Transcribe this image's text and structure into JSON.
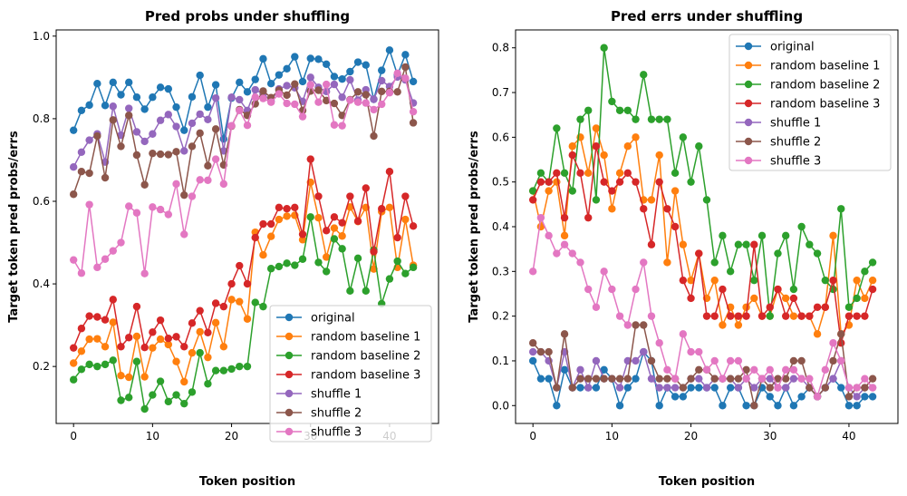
{
  "chart_data": [
    {
      "type": "line",
      "title": "Pred probs under shuffling",
      "xlabel": "Token position",
      "ylabel": "Target token pred probs/errs",
      "xlim": [
        -2.2,
        46.2
      ],
      "ylim": [
        0.062,
        1.015
      ],
      "xticks": [
        0,
        10,
        20,
        30,
        40
      ],
      "yticks": [
        0.2,
        0.4,
        0.6,
        0.8,
        1.0
      ],
      "ytick_labels": [
        "0.2",
        "0.4",
        "0.6",
        "0.8",
        "1.0"
      ],
      "legend_position": "lower right",
      "series": [
        {
          "name": "original",
          "color": "#1f77b4",
          "values": [
            0.772,
            0.82,
            0.833,
            0.885,
            0.832,
            0.888,
            0.858,
            0.888,
            0.852,
            0.823,
            0.852,
            0.876,
            0.872,
            0.828,
            0.772,
            0.853,
            0.905,
            0.828,
            0.882,
            0.751,
            0.85,
            0.888,
            0.865,
            0.895,
            0.945,
            0.885,
            0.906,
            0.921,
            0.95,
            0.89,
            0.946,
            0.944,
            0.932,
            0.902,
            0.896,
            0.914,
            0.937,
            0.93,
            0.847,
            0.917,
            0.966,
            0.906,
            0.955,
            0.89
          ]
        },
        {
          "name": "random baseline 1",
          "color": "#ff7f0e",
          "values": [
            0.208,
            0.237,
            0.266,
            0.267,
            0.248,
            0.307,
            0.178,
            0.174,
            0.273,
            0.175,
            0.245,
            0.266,
            0.253,
            0.212,
            0.163,
            0.233,
            0.284,
            0.222,
            0.306,
            0.248,
            0.362,
            0.357,
            0.315,
            0.525,
            0.47,
            0.515,
            0.556,
            0.564,
            0.566,
            0.507,
            0.646,
            0.56,
            0.465,
            0.535,
            0.516,
            0.586,
            0.551,
            0.585,
            0.436,
            0.575,
            0.585,
            0.44,
            0.556,
            0.445
          ]
        },
        {
          "name": "random baseline 2",
          "color": "#2ca02c",
          "values": [
            0.168,
            0.193,
            0.205,
            0.2,
            0.205,
            0.215,
            0.118,
            0.125,
            0.212,
            0.097,
            0.131,
            0.164,
            0.115,
            0.131,
            0.11,
            0.138,
            0.233,
            0.158,
            0.19,
            0.19,
            0.194,
            0.2,
            0.2,
            0.355,
            0.345,
            0.437,
            0.442,
            0.45,
            0.445,
            0.46,
            0.562,
            0.452,
            0.43,
            0.509,
            0.485,
            0.383,
            0.462,
            0.383,
            0.482,
            0.352,
            0.412,
            0.455,
            0.425,
            0.44
          ]
        },
        {
          "name": "random baseline 3",
          "color": "#d62728",
          "values": [
            0.245,
            0.292,
            0.322,
            0.32,
            0.313,
            0.362,
            0.248,
            0.27,
            0.345,
            0.246,
            0.283,
            0.312,
            0.268,
            0.272,
            0.248,
            0.305,
            0.335,
            0.282,
            0.353,
            0.345,
            0.4,
            0.444,
            0.4,
            0.512,
            0.545,
            0.545,
            0.585,
            0.582,
            0.585,
            0.52,
            0.702,
            0.612,
            0.529,
            0.562,
            0.548,
            0.612,
            0.552,
            0.632,
            0.478,
            0.582,
            0.672,
            0.512,
            0.612,
            0.54
          ]
        },
        {
          "name": "shuffle 1",
          "color": "#9467bd",
          "values": [
            0.683,
            0.719,
            0.748,
            0.763,
            0.695,
            0.83,
            0.76,
            0.825,
            0.768,
            0.745,
            0.763,
            0.796,
            0.81,
            0.781,
            0.722,
            0.789,
            0.811,
            0.798,
            0.85,
            0.722,
            0.852,
            0.846,
            0.82,
            0.87,
            0.86,
            0.843,
            0.872,
            0.88,
            0.875,
            0.842,
            0.9,
            0.876,
            0.866,
            0.883,
            0.852,
            0.894,
            0.845,
            0.87,
            0.847,
            0.892,
            0.878,
            0.901,
            0.894,
            0.838
          ]
        },
        {
          "name": "shuffle 2",
          "color": "#8c564b",
          "values": [
            0.617,
            0.672,
            0.668,
            0.758,
            0.657,
            0.797,
            0.733,
            0.808,
            0.712,
            0.64,
            0.716,
            0.714,
            0.713,
            0.72,
            0.615,
            0.733,
            0.765,
            0.686,
            0.775,
            0.688,
            0.782,
            0.822,
            0.808,
            0.836,
            0.867,
            0.851,
            0.869,
            0.857,
            0.884,
            0.82,
            0.867,
            0.869,
            0.844,
            0.837,
            0.808,
            0.846,
            0.865,
            0.858,
            0.758,
            0.866,
            0.866,
            0.865,
            0.925,
            0.79
          ]
        },
        {
          "name": "shuffle 3",
          "color": "#e377c2",
          "values": [
            0.458,
            0.426,
            0.592,
            0.44,
            0.46,
            0.48,
            0.5,
            0.588,
            0.572,
            0.425,
            0.586,
            0.58,
            0.568,
            0.642,
            0.52,
            0.612,
            0.652,
            0.651,
            0.702,
            0.642,
            0.783,
            0.82,
            0.784,
            0.852,
            0.849,
            0.84,
            0.86,
            0.837,
            0.835,
            0.805,
            0.882,
            0.84,
            0.883,
            0.785,
            0.783,
            0.845,
            0.84,
            0.838,
            0.822,
            0.835,
            0.863,
            0.91,
            0.898,
            0.817
          ]
        }
      ]
    },
    {
      "type": "line",
      "title": "Pred errs under shuffling",
      "xlabel": "Token position",
      "ylabel": "Target token pred probs/errs",
      "xlim": [
        -2.2,
        46.2
      ],
      "ylim": [
        -0.04,
        0.84
      ],
      "xticks": [
        0,
        10,
        20,
        30,
        40
      ],
      "yticks": [
        0.0,
        0.1,
        0.2,
        0.3,
        0.4,
        0.5,
        0.6,
        0.7,
        0.8
      ],
      "ytick_labels": [
        "0.0",
        "0.1",
        "0.2",
        "0.3",
        "0.4",
        "0.5",
        "0.6",
        "0.7",
        "0.8"
      ],
      "legend_position": "upper right",
      "series": [
        {
          "name": "original",
          "color": "#1f77b4",
          "values": [
            0.1,
            0.06,
            0.06,
            0.0,
            0.08,
            0.04,
            0.04,
            0.04,
            0.04,
            0.08,
            0.06,
            0.0,
            0.04,
            0.06,
            0.12,
            0.1,
            0.0,
            0.04,
            0.02,
            0.02,
            0.04,
            0.04,
            0.04,
            0.04,
            0.0,
            0.04,
            0.04,
            0.0,
            0.0,
            0.04,
            0.02,
            0.0,
            0.04,
            0.0,
            0.02,
            0.04,
            0.02,
            0.04,
            0.06,
            0.04,
            0.0,
            0.0,
            0.02,
            0.02
          ]
        },
        {
          "name": "random baseline 1",
          "color": "#ff7f0e",
          "values": [
            0.48,
            0.4,
            0.48,
            0.5,
            0.38,
            0.58,
            0.6,
            0.52,
            0.62,
            0.56,
            0.44,
            0.52,
            0.58,
            0.6,
            0.46,
            0.46,
            0.56,
            0.32,
            0.48,
            0.36,
            0.28,
            0.34,
            0.24,
            0.28,
            0.18,
            0.22,
            0.18,
            0.22,
            0.24,
            0.2,
            0.2,
            0.26,
            0.24,
            0.2,
            0.2,
            0.2,
            0.16,
            0.22,
            0.38,
            0.16,
            0.18,
            0.28,
            0.24,
            0.28
          ]
        },
        {
          "name": "random baseline 2",
          "color": "#2ca02c",
          "values": [
            0.48,
            0.52,
            0.5,
            0.62,
            0.52,
            0.48,
            0.64,
            0.66,
            0.46,
            0.8,
            0.68,
            0.66,
            0.66,
            0.64,
            0.74,
            0.64,
            0.64,
            0.64,
            0.52,
            0.6,
            0.5,
            0.58,
            0.46,
            0.32,
            0.38,
            0.3,
            0.36,
            0.36,
            0.28,
            0.38,
            0.2,
            0.34,
            0.38,
            0.26,
            0.4,
            0.36,
            0.34,
            0.28,
            0.26,
            0.44,
            0.22,
            0.24,
            0.3,
            0.32
          ]
        },
        {
          "name": "random baseline 3",
          "color": "#d62728",
          "values": [
            0.46,
            0.5,
            0.5,
            0.52,
            0.42,
            0.56,
            0.52,
            0.42,
            0.58,
            0.5,
            0.48,
            0.5,
            0.52,
            0.5,
            0.44,
            0.36,
            0.5,
            0.44,
            0.4,
            0.28,
            0.24,
            0.34,
            0.2,
            0.2,
            0.26,
            0.2,
            0.2,
            0.2,
            0.36,
            0.2,
            0.22,
            0.26,
            0.2,
            0.24,
            0.2,
            0.2,
            0.22,
            0.22,
            0.28,
            0.14,
            0.2,
            0.2,
            0.2,
            0.26
          ]
        },
        {
          "name": "shuffle 1",
          "color": "#9467bd",
          "values": [
            0.12,
            0.12,
            0.1,
            0.04,
            0.12,
            0.04,
            0.08,
            0.04,
            0.1,
            0.06,
            0.06,
            0.04,
            0.1,
            0.1,
            0.12,
            0.06,
            0.04,
            0.04,
            0.04,
            0.04,
            0.06,
            0.06,
            0.04,
            0.06,
            0.06,
            0.06,
            0.04,
            0.06,
            0.04,
            0.06,
            0.06,
            0.04,
            0.04,
            0.06,
            0.06,
            0.04,
            0.02,
            0.04,
            0.06,
            0.1,
            0.04,
            0.02,
            0.04,
            0.04
          ]
        },
        {
          "name": "shuffle 2",
          "color": "#8c564b",
          "values": [
            0.14,
            0.12,
            0.12,
            0.04,
            0.16,
            0.04,
            0.06,
            0.06,
            0.06,
            0.06,
            0.06,
            0.06,
            0.06,
            0.18,
            0.18,
            0.1,
            0.06,
            0.06,
            0.06,
            0.04,
            0.06,
            0.08,
            0.08,
            0.06,
            0.06,
            0.06,
            0.06,
            0.08,
            0.0,
            0.06,
            0.04,
            0.06,
            0.06,
            0.1,
            0.1,
            0.04,
            0.02,
            0.04,
            0.1,
            0.16,
            0.02,
            0.04,
            0.04,
            0.06
          ]
        },
        {
          "name": "shuffle 3",
          "color": "#e377c2",
          "values": [
            0.3,
            0.42,
            0.38,
            0.34,
            0.36,
            0.34,
            0.32,
            0.26,
            0.22,
            0.3,
            0.26,
            0.2,
            0.18,
            0.26,
            0.32,
            0.2,
            0.14,
            0.08,
            0.06,
            0.16,
            0.12,
            0.12,
            0.08,
            0.1,
            0.06,
            0.1,
            0.1,
            0.06,
            0.08,
            0.06,
            0.08,
            0.04,
            0.08,
            0.08,
            0.06,
            0.06,
            0.02,
            0.08,
            0.14,
            0.1,
            0.04,
            0.04,
            0.06,
            0.04
          ]
        }
      ]
    }
  ]
}
